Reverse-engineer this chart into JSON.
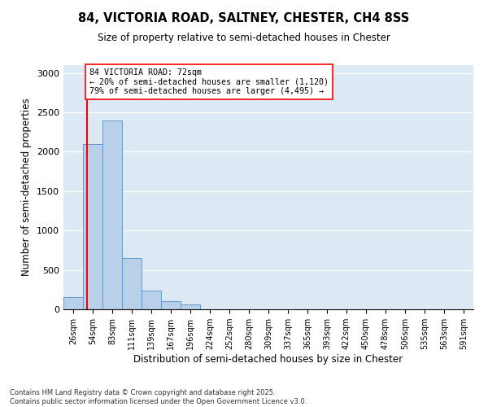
{
  "title_line1": "84, VICTORIA ROAD, SALTNEY, CHESTER, CH4 8SS",
  "title_line2": "Size of property relative to semi-detached houses in Chester",
  "xlabel": "Distribution of semi-detached houses by size in Chester",
  "ylabel": "Number of semi-detached properties",
  "bar_labels": [
    "26sqm",
    "54sqm",
    "83sqm",
    "111sqm",
    "139sqm",
    "167sqm",
    "196sqm",
    "224sqm",
    "252sqm",
    "280sqm",
    "309sqm",
    "337sqm",
    "365sqm",
    "393sqm",
    "422sqm",
    "450sqm",
    "478sqm",
    "506sqm",
    "535sqm",
    "563sqm",
    "591sqm"
  ],
  "bar_values": [
    150,
    2100,
    2400,
    650,
    240,
    100,
    60,
    0,
    0,
    0,
    0,
    0,
    0,
    0,
    0,
    0,
    0,
    0,
    0,
    0,
    0
  ],
  "bar_color": "#b8d0e8",
  "bar_edge_color": "#6699cc",
  "property_line_x": 0.72,
  "annotation_title": "84 VICTORIA ROAD: 72sqm",
  "annotation_line1": "← 20% of semi-detached houses are smaller (1,120)",
  "annotation_line2": "79% of semi-detached houses are larger (4,495) →",
  "vline_color": "red",
  "ylim": [
    0,
    3100
  ],
  "yticks": [
    0,
    500,
    1000,
    1500,
    2000,
    2500,
    3000
  ],
  "background_color": "#dde8f5",
  "footer_line1": "Contains HM Land Registry data © Crown copyright and database right 2025.",
  "footer_line2": "Contains public sector information licensed under the Open Government Licence v3.0."
}
